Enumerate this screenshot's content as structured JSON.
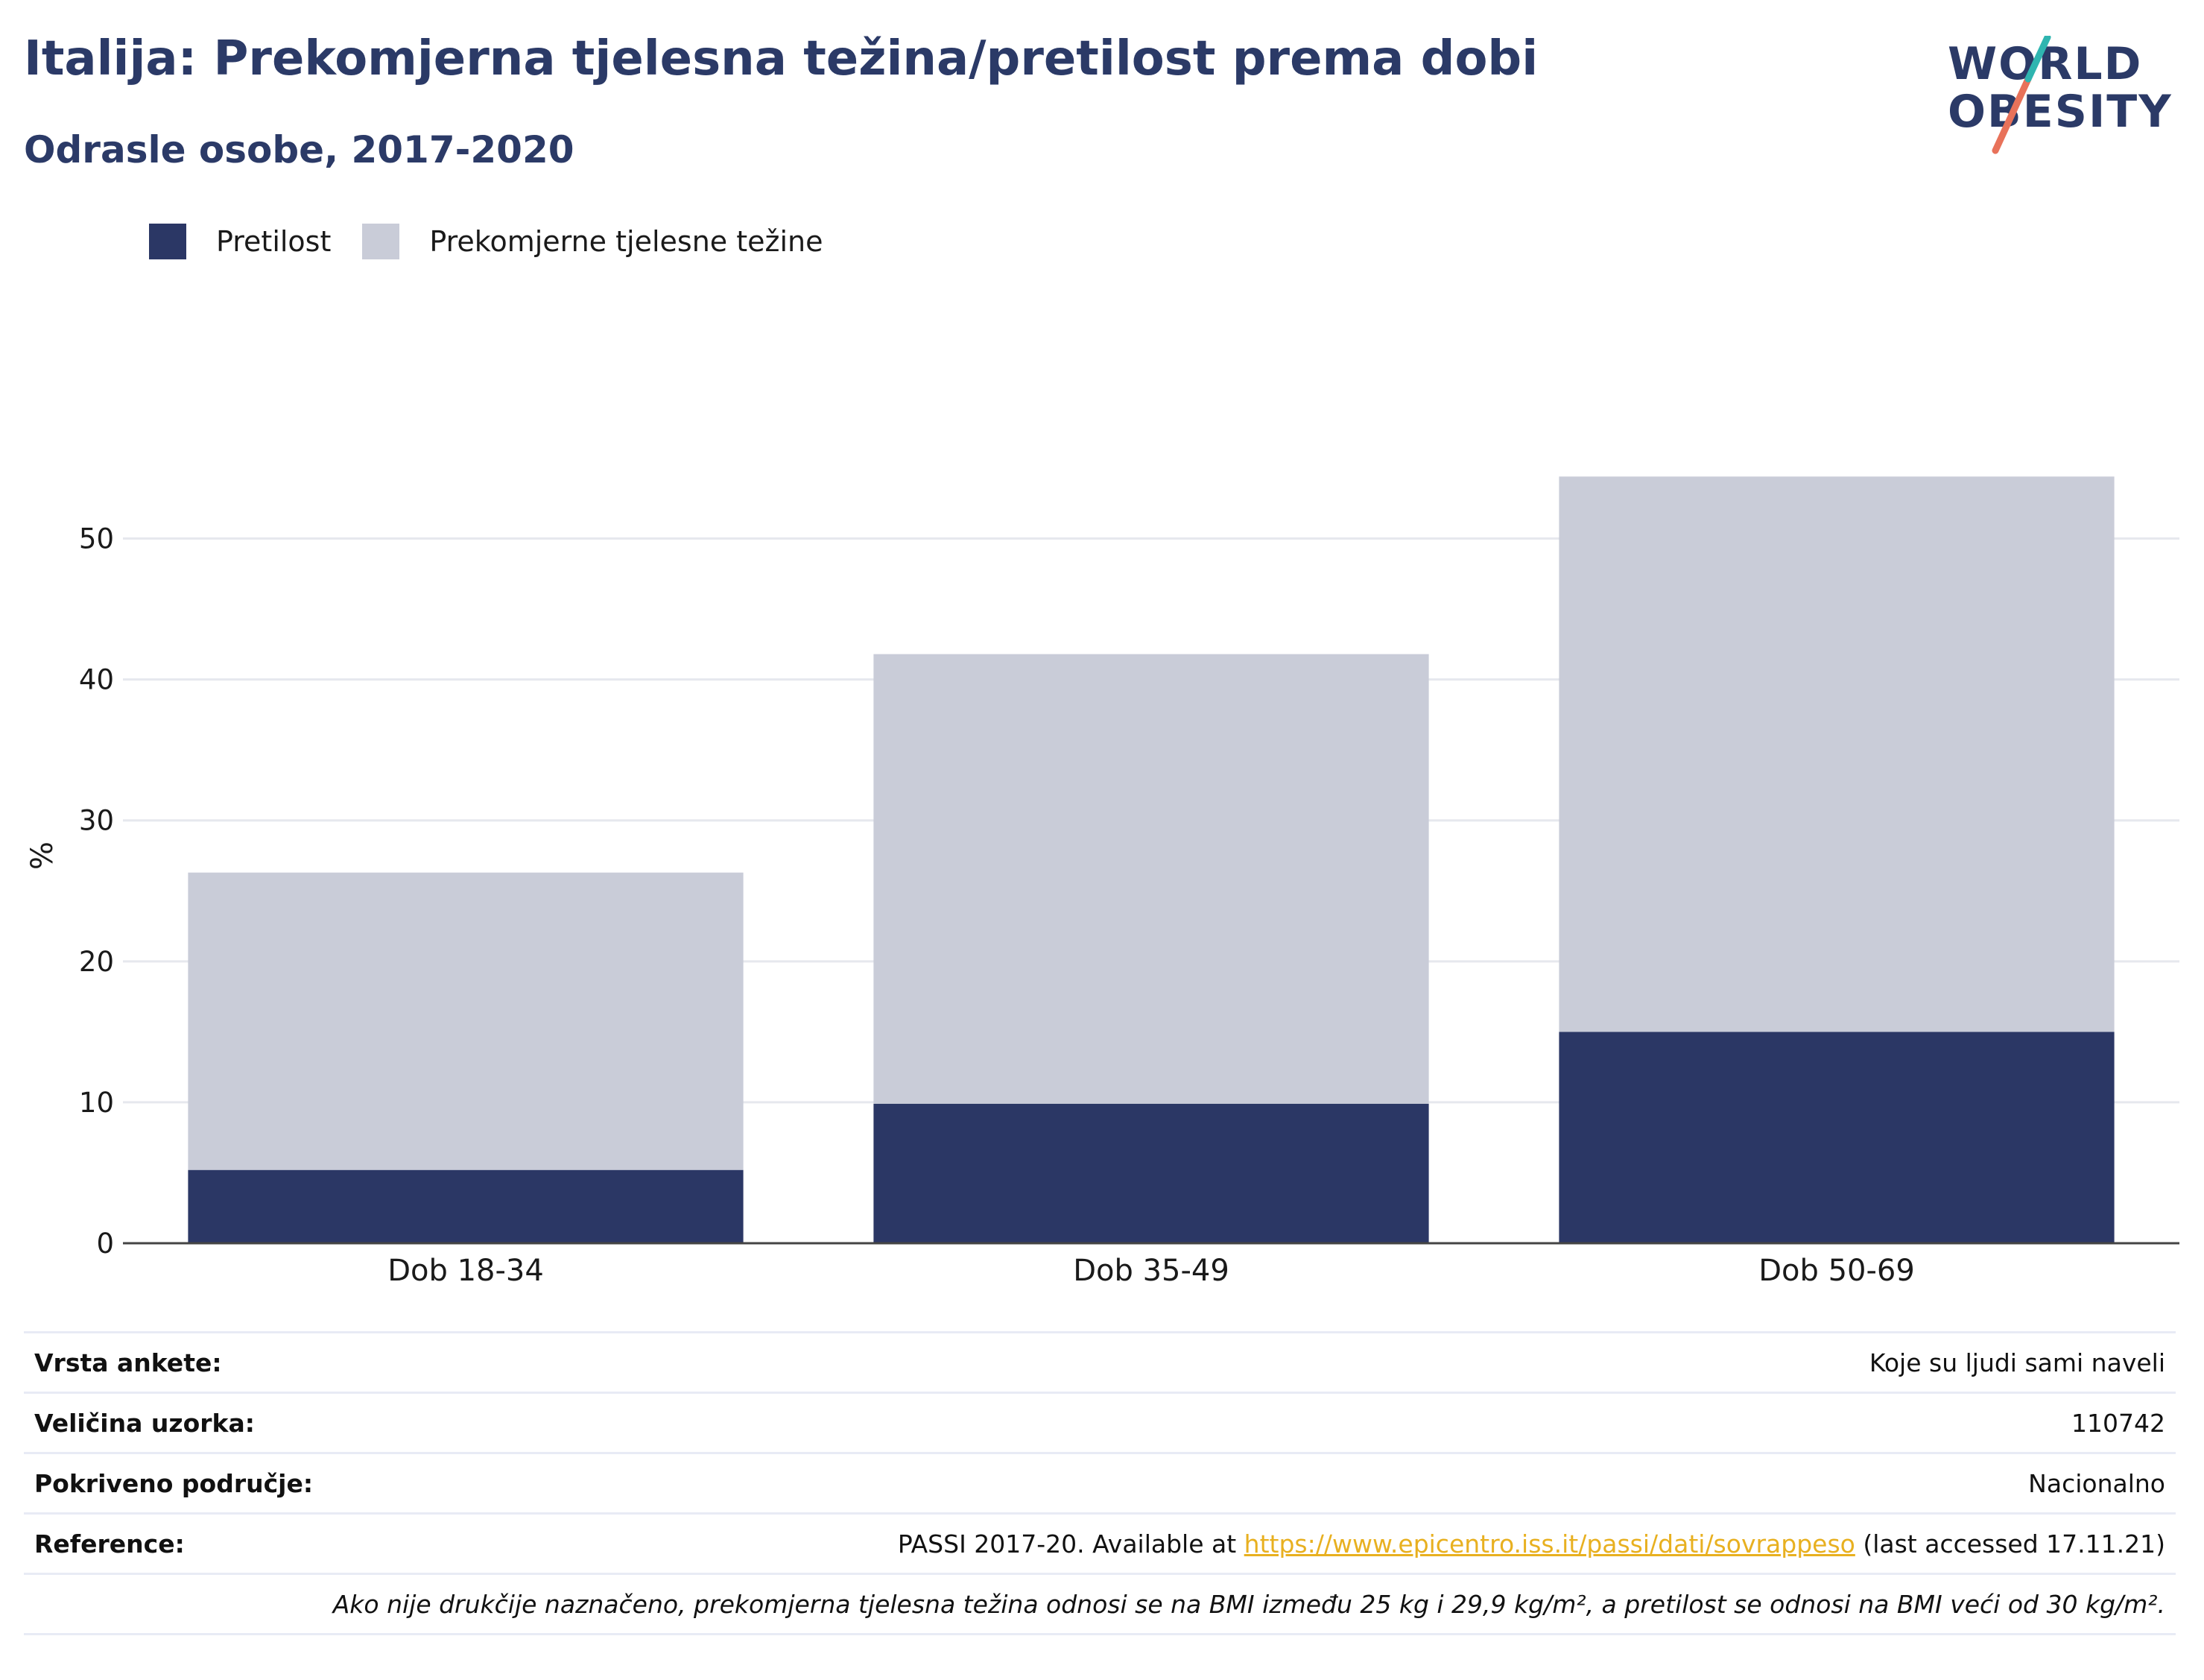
{
  "header": {
    "title": "Italija: Prekomjerna tjelesna težina/pretilost prema dobi",
    "subtitle": "Odrasle osobe, 2017-2020"
  },
  "logo": {
    "line1": "WORLD",
    "line2": "OBESITY"
  },
  "legend": [
    {
      "label": "Pretilost",
      "color": "#2b3765"
    },
    {
      "label": "Prekomjerne tjelesne težine",
      "color": "#c9ccd8"
    }
  ],
  "chart_data": {
    "type": "bar",
    "stacked": true,
    "categories": [
      "Dob 18-34",
      "Dob 35-49",
      "Dob 50-69"
    ],
    "series": [
      {
        "name": "Pretilost",
        "values": [
          5.2,
          9.9,
          15.0
        ],
        "color": "#2b3765"
      },
      {
        "name": "Prekomjerne tjelesne težine",
        "values": [
          21.1,
          31.9,
          39.4
        ],
        "color": "#c9ccd8"
      }
    ],
    "ylabel": "%",
    "ylim": [
      0,
      55
    ],
    "yticks": [
      0,
      10,
      20,
      30,
      40,
      50
    ],
    "grid": true,
    "legend_position": "top-left"
  },
  "info": {
    "survey_type_label": "Vrsta ankete:",
    "survey_type_value": "Koje su ljudi sami naveli",
    "sample_size_label": "Veličina uzorka:",
    "sample_size_value": "110742",
    "coverage_label": "Pokriveno područje:",
    "coverage_value": "Nacionalno",
    "reference_label": "Reference:",
    "reference_prefix": "PASSI 2017-20. Available at ",
    "reference_link": "https://www.epicentro.iss.it/passi/dati/sovrappeso",
    "reference_suffix": " (last accessed 17.11.21)",
    "note": "Ako nije drukčije naznačeno, prekomjerna tjelesna težina odnosi se na BMI između 25 kg i 29,9 kg/m², a pretilost se odnosi na BMI veći od 30 kg/m²."
  }
}
